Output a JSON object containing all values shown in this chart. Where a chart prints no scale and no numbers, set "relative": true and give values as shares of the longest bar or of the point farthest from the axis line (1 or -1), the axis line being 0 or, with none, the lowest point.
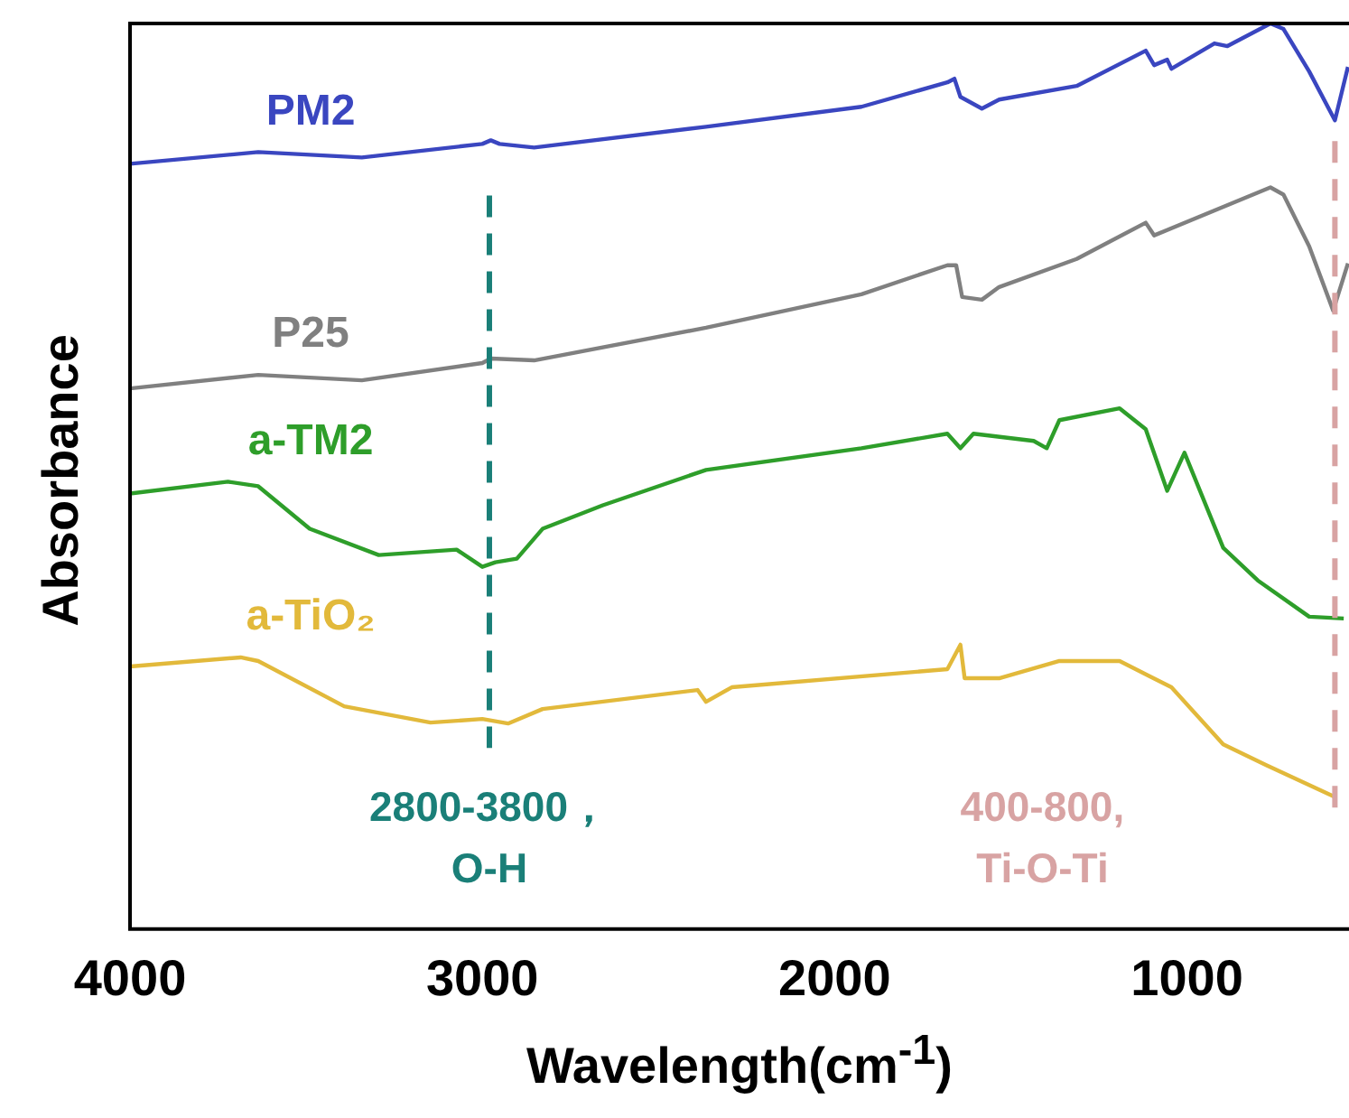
{
  "chart_data": {
    "type": "line",
    "relative": true,
    "xlabel": "Wavelength(cm$^{-1}$)",
    "ylabel": "Absorbance",
    "xlim": [
      4000,
      540
    ],
    "xticks": [
      4000,
      3000,
      2000,
      1000
    ],
    "grid": false,
    "legend": false,
    "marker": "none",
    "line_style": "solid",
    "series": [
      {
        "name": "PM2",
        "color": "#3a46c0",
        "x": [
          4000,
          3636,
          3342,
          3000,
          2976,
          2951,
          2853,
          2365,
          1924,
          1680,
          1660,
          1643,
          1582,
          1533,
          1313,
          1117,
          1093,
          1056,
          1044,
          922,
          885,
          763,
          726,
          653,
          580,
          543
        ],
        "values": [
          0.845,
          0.858,
          0.852,
          0.867,
          0.871,
          0.867,
          0.863,
          0.886,
          0.908,
          0.935,
          0.939,
          0.919,
          0.906,
          0.916,
          0.931,
          0.97,
          0.954,
          0.96,
          0.95,
          0.978,
          0.975,
          1,
          0.994,
          0.947,
          0.893,
          0.952
        ]
      },
      {
        "name": "P25",
        "color": "#808080",
        "x": [
          4000,
          3636,
          3342,
          3000,
          2976,
          2853,
          2365,
          1924,
          1680,
          1655,
          1638,
          1582,
          1533,
          1313,
          1117,
          1093,
          763,
          726,
          653,
          585,
          543
        ],
        "values": [
          0.597,
          0.612,
          0.606,
          0.625,
          0.63,
          0.628,
          0.664,
          0.701,
          0.733,
          0.733,
          0.698,
          0.695,
          0.709,
          0.74,
          0.78,
          0.766,
          0.819,
          0.811,
          0.754,
          0.683,
          0.735
        ]
      },
      {
        "name": "a-TM2",
        "color": "#2e9e2a",
        "x": [
          4000,
          3722,
          3636,
          3490,
          3294,
          3073,
          3000,
          2963,
          2902,
          2829,
          2658,
          2365,
          1924,
          1680,
          1643,
          1606,
          1435,
          1398,
          1362,
          1191,
          1117,
          1056,
          1007,
          897,
          799,
          653,
          555
        ],
        "values": [
          0.481,
          0.494,
          0.489,
          0.442,
          0.413,
          0.419,
          0.4,
          0.405,
          0.409,
          0.442,
          0.468,
          0.507,
          0.531,
          0.547,
          0.531,
          0.547,
          0.539,
          0.531,
          0.562,
          0.575,
          0.552,
          0.484,
          0.526,
          0.421,
          0.385,
          0.345,
          0.343
        ]
      },
      {
        "name": "a-TiO₂",
        "color": "#e2b93b",
        "x": [
          4000,
          3686,
          3636,
          3392,
          3147,
          3000,
          2927,
          2829,
          2389,
          2365,
          2292,
          1680,
          1643,
          1631,
          1533,
          1362,
          1191,
          1044,
          897,
          775,
          580
        ],
        "values": [
          0.29,
          0.3,
          0.296,
          0.246,
          0.228,
          0.232,
          0.227,
          0.243,
          0.264,
          0.251,
          0.267,
          0.287,
          0.314,
          0.277,
          0.277,
          0.296,
          0.296,
          0.267,
          0.204,
          0.181,
          0.146
        ]
      }
    ],
    "ref_lines": [
      {
        "axis": "x",
        "value": 2980,
        "label": "2800-3800，\nO-H",
        "color": "#1a7f78",
        "line_style": "dashed"
      },
      {
        "axis": "x",
        "value": 580,
        "label": "400-800,\nTi-O-Ti",
        "color": "#d8a3a3",
        "line_style": "dashed"
      }
    ]
  }
}
